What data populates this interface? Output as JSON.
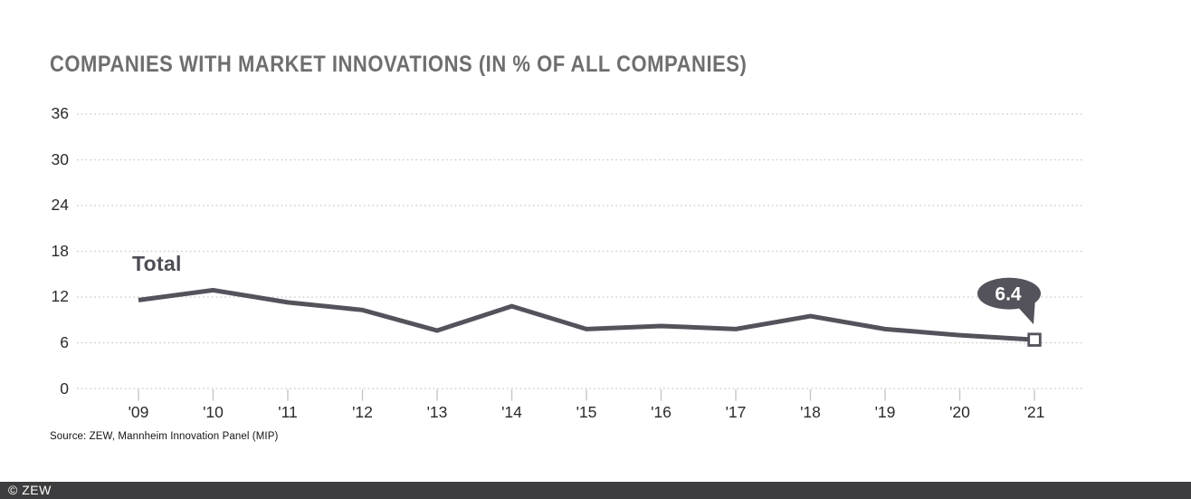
{
  "header": {
    "title": "COMPANIES WITH MARKET INNOVATIONS (IN % OF ALL COMPANIES)"
  },
  "chart_data": {
    "type": "line",
    "title": "COMPANIES WITH MARKET INNOVATIONS (IN % OF ALL COMPANIES)",
    "categories": [
      "'09",
      "'10",
      "'11",
      "'12",
      "'13",
      "'14",
      "'15",
      "'16",
      "'17",
      "'18",
      "'19",
      "'20",
      "'21"
    ],
    "series": [
      {
        "name": "Total",
        "values": [
          11.6,
          12.9,
          11.3,
          10.3,
          7.6,
          10.8,
          7.8,
          8.2,
          7.8,
          9.5,
          7.8,
          7.0,
          6.4
        ]
      }
    ],
    "series_label": "Total",
    "last_value_label": "6.4",
    "ylim": [
      0,
      36
    ],
    "yticks": [
      0,
      6,
      12,
      18,
      24,
      30,
      36
    ],
    "grid": "horizontal-dotted",
    "legend_position": "inline-label-near-line-start",
    "line_color": "#54525b",
    "grid_color": "#c6c6c6",
    "marker": "white-square-on-last-point",
    "callout_fill": "#54525b",
    "callout_text_color": "#ffffff"
  },
  "source": {
    "text": "Source: ZEW, Mannheim Innovation Panel (MIP)"
  },
  "footer": {
    "copyright": "© ZEW",
    "bar_color": "#3d3d3f"
  }
}
